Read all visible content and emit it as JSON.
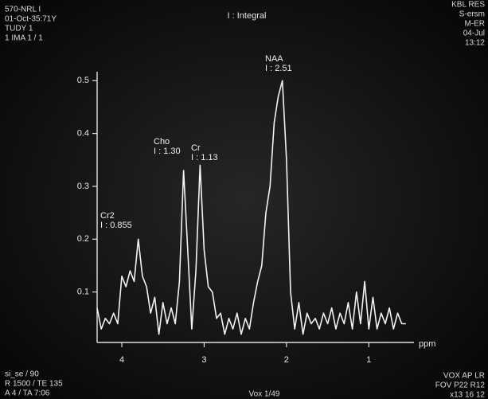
{
  "chart_data": {
    "type": "line",
    "header_left": [
      "570-NRL I",
      "01-Oct-35:71Y",
      "TUDY 1",
      "1 IMA 1 / 1"
    ],
    "title": "I : Integral",
    "header_right": [
      "KBL RES",
      "S-ersm",
      "M-ER",
      "04-Jul",
      "13:12"
    ],
    "footer_left": [
      "si_se / 90",
      "R 1500 / TE 135",
      "A 4 / TA 7:06"
    ],
    "footer_center": "Vox 1/49",
    "footer_right": [
      "VOX   AP   LR",
      "FOV  P22  R12",
      "x13  16   12"
    ],
    "xlabel": "ppm",
    "annotations": [
      {
        "name": "Cr2",
        "text": "I : 0.855"
      },
      {
        "name": "Cho",
        "text": "I : 1.30"
      },
      {
        "name": "Cr",
        "text": "I : 1.13"
      },
      {
        "name": "NAA",
        "text": "I : 2.51"
      }
    ],
    "color": "#f2f2f2",
    "xlim": [
      4.3,
      0.5
    ],
    "xticks": [
      4,
      3,
      2,
      1
    ],
    "ylim": [
      0,
      0.52
    ],
    "yticks": [
      0.1,
      0.2,
      0.3,
      0.4,
      0.5
    ],
    "x": [
      4.3,
      4.25,
      4.2,
      4.15,
      4.1,
      4.05,
      4.0,
      3.95,
      3.9,
      3.85,
      3.8,
      3.75,
      3.7,
      3.65,
      3.6,
      3.55,
      3.5,
      3.45,
      3.4,
      3.35,
      3.3,
      3.25,
      3.2,
      3.15,
      3.1,
      3.05,
      3.0,
      2.95,
      2.9,
      2.85,
      2.8,
      2.75,
      2.7,
      2.65,
      2.6,
      2.55,
      2.5,
      2.45,
      2.4,
      2.35,
      2.3,
      2.25,
      2.2,
      2.15,
      2.1,
      2.05,
      2.0,
      1.95,
      1.9,
      1.85,
      1.8,
      1.75,
      1.7,
      1.65,
      1.6,
      1.55,
      1.5,
      1.45,
      1.4,
      1.35,
      1.3,
      1.25,
      1.2,
      1.15,
      1.1,
      1.05,
      1.0,
      0.95,
      0.9,
      0.85,
      0.8,
      0.75,
      0.7,
      0.65,
      0.6,
      0.55
    ],
    "values": [
      0.07,
      0.03,
      0.05,
      0.04,
      0.06,
      0.04,
      0.13,
      0.11,
      0.14,
      0.12,
      0.2,
      0.13,
      0.11,
      0.06,
      0.09,
      0.02,
      0.08,
      0.04,
      0.07,
      0.04,
      0.12,
      0.33,
      0.18,
      0.03,
      0.14,
      0.34,
      0.18,
      0.11,
      0.1,
      0.05,
      0.06,
      0.02,
      0.05,
      0.03,
      0.06,
      0.02,
      0.05,
      0.03,
      0.08,
      0.12,
      0.15,
      0.25,
      0.3,
      0.42,
      0.47,
      0.5,
      0.35,
      0.1,
      0.03,
      0.08,
      0.02,
      0.06,
      0.04,
      0.05,
      0.03,
      0.06,
      0.04,
      0.07,
      0.03,
      0.06,
      0.04,
      0.08,
      0.03,
      0.1,
      0.04,
      0.12,
      0.03,
      0.09,
      0.03,
      0.06,
      0.04,
      0.07,
      0.03,
      0.06,
      0.04,
      0.04
    ]
  }
}
